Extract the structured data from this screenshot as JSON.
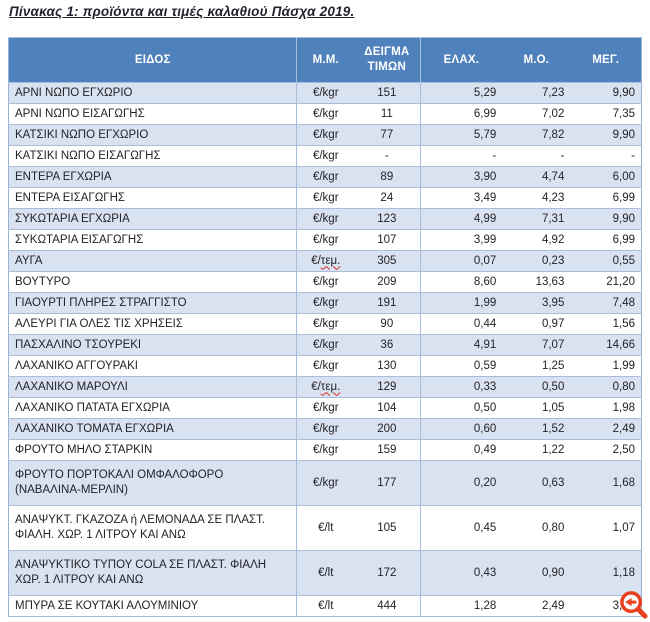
{
  "title": "Πίνακας 1: προϊόντα και τιμές καλαθιού  Πάσχα 2019.",
  "colors": {
    "header_bg": "#4f81bd",
    "band_bg": "#d9e2f0",
    "border": "#a9bdd8",
    "title_color": "#23232e",
    "zoom_icon_color": "#e8401f",
    "spellcheck_color": "#d42a1e"
  },
  "table": {
    "headers": [
      "ΕΙΔΟΣ",
      "Μ.Μ.",
      "ΔΕΙΓΜΑ ΤΙΜΩΝ",
      "ΕΛΑΧ.",
      "Μ.Ο.",
      "ΜΕΓ."
    ],
    "rows": [
      {
        "item": "ΑΡΝΙ ΝΩΠΟ ΕΓΧΩΡΙΟ",
        "unit": "€/kgr",
        "spellcheck": false,
        "sample": "151",
        "min": "5,29",
        "avg": "7,23",
        "max": "9,90"
      },
      {
        "item": "ΑΡΝΙ ΝΩΠΟ ΕΙΣΑΓΩΓΗΣ",
        "unit": "€/kgr",
        "spellcheck": false,
        "sample": "11",
        "min": "6,99",
        "avg": "7,02",
        "max": "7,35"
      },
      {
        "item": "ΚΑΤΣΙΚΙ ΝΩΠΟ ΕΓΧΩΡΙΟ",
        "unit": "€/kgr",
        "spellcheck": false,
        "sample": "77",
        "min": "5,79",
        "avg": "7,82",
        "max": "9,90"
      },
      {
        "item": "ΚΑΤΣΙΚΙ ΝΩΠΟ ΕΙΣΑΓΩΓΗΣ",
        "unit": "€/kgr",
        "spellcheck": false,
        "sample": "-",
        "min": "-",
        "avg": "-",
        "max": "-"
      },
      {
        "item": "ΕΝΤΕΡΑ ΕΓΧΩΡΙΑ",
        "unit": "€/kgr",
        "spellcheck": false,
        "sample": "89",
        "min": "3,90",
        "avg": "4,74",
        "max": "6,00"
      },
      {
        "item": "ΕΝΤΕΡΑ ΕΙΣΑΓΩΓΗΣ",
        "unit": "€/kgr",
        "spellcheck": false,
        "sample": "24",
        "min": "3,49",
        "avg": "4,23",
        "max": "6,99"
      },
      {
        "item": "ΣΥΚΩΤΑΡΙΑ ΕΓΧΩΡΙΑ",
        "unit": "€/kgr",
        "spellcheck": false,
        "sample": "123",
        "min": "4,99",
        "avg": "7,31",
        "max": "9,90"
      },
      {
        "item": "ΣΥΚΩΤΑΡΙΑ ΕΙΣΑΓΩΓΗΣ",
        "unit": "€/kgr",
        "spellcheck": false,
        "sample": "107",
        "min": "3,99",
        "avg": "4,92",
        "max": "6,99"
      },
      {
        "item": "ΑΥΓΑ",
        "unit": "€/τεμ.",
        "spellcheck": true,
        "sample": "305",
        "min": "0,07",
        "avg": "0,23",
        "max": "0,55"
      },
      {
        "item": "ΒΟΥΤΥΡΟ",
        "unit": "€/kgr",
        "spellcheck": false,
        "sample": "209",
        "min": "8,60",
        "avg": "13,63",
        "max": "21,20"
      },
      {
        "item": "ΓΙΑΟΥΡΤΙ ΠΛΗΡΕΣ ΣΤΡΑΓΓΙΣΤΟ",
        "unit": "€/kgr",
        "spellcheck": false,
        "sample": "191",
        "min": "1,99",
        "avg": "3,95",
        "max": "7,48"
      },
      {
        "item": "ΑΛΕΥΡΙ ΓΙΑ ΟΛΕΣ ΤΙΣ ΧΡΗΣΕΙΣ",
        "unit": "€/kgr",
        "spellcheck": false,
        "sample": "90",
        "min": "0,44",
        "avg": "0,97",
        "max": "1,56"
      },
      {
        "item": "ΠΑΣΧΑΛΙΝΟ ΤΣΟΥΡΕΚΙ",
        "unit": "€/kgr",
        "spellcheck": false,
        "sample": "36",
        "min": "4,91",
        "avg": "7,07",
        "max": "14,66"
      },
      {
        "item": "ΛΑΧΑΝΙΚΟ ΑΓΓΟΥΡΑΚΙ",
        "unit": "€/kgr",
        "spellcheck": false,
        "sample": "130",
        "min": "0,59",
        "avg": "1,25",
        "max": "1,99"
      },
      {
        "item": "ΛΑΧΑΝΙΚΟ ΜΑΡΟΥΛΙ",
        "unit": "€/τεμ.",
        "spellcheck": true,
        "sample": "129",
        "min": "0,33",
        "avg": "0,50",
        "max": "0,80"
      },
      {
        "item": "ΛΑΧΑΝΙΚΟ ΠΑΤΑΤΑ ΕΓΧΩΡΙΑ",
        "unit": "€/kgr",
        "spellcheck": false,
        "sample": "104",
        "min": "0,50",
        "avg": "1,05",
        "max": "1,98"
      },
      {
        "item": "ΛΑΧΑΝΙΚΟ ΤΟΜΑΤΑ ΕΓΧΩΡΙΑ",
        "unit": "€/kgr",
        "spellcheck": false,
        "sample": "200",
        "min": "0,60",
        "avg": "1,52",
        "max": "2,49"
      },
      {
        "item": "ΦΡΟΥΤΟ ΜΗΛΟ  ΣΤΑΡΚΙΝ",
        "unit": "€/kgr",
        "spellcheck": false,
        "sample": "159",
        "min": "0,49",
        "avg": "1,22",
        "max": "2,50"
      },
      {
        "item": "ΦΡΟΥΤΟ ΠΟΡΤΟΚΑΛΙ ΟΜΦΑΛΟΦΟΡΟ (ΝΑΒΑΛΙΝΑ-ΜΕΡΛΙΝ)",
        "unit": "€/kgr",
        "spellcheck": false,
        "sample": "177",
        "min": "0,20",
        "avg": "0,63",
        "max": "1,68"
      },
      {
        "item": "ΑΝΑΨΥΚΤ. ΓΚΑΖΟΖΑ ή ΛΕΜΟΝΑΔΑ ΣΕ ΠΛΑΣΤ. ΦΙΑΛΗ. ΧΩΡ. 1 ΛΙΤΡΟΥ ΚΑΙ ΑΝΩ",
        "unit": "€/lt",
        "spellcheck": false,
        "sample": "105",
        "min": "0,45",
        "avg": "0,80",
        "max": "1,07"
      },
      {
        "item": "ΑΝΑΨΥΚΤΙΚΟ ΤΥΠΟΥ COLA ΣΕ ΠΛΑΣΤ. ΦΙΑΛΗ ΧΩΡ. 1 ΛΙΤΡΟΥ ΚΑΙ ΑΝΩ",
        "unit": "€/lt",
        "spellcheck": false,
        "sample": "172",
        "min": "0,43",
        "avg": "0,90",
        "max": "1,18"
      },
      {
        "item": "ΜΠΥΡΑ ΣΕ ΚΟΥΤΑΚΙ ΑΛΟΥΜΙΝΙΟΥ",
        "unit": "€/lt",
        "spellcheck": false,
        "sample": "444",
        "min": "1,28",
        "avg": "2,49",
        "max": "3,70"
      }
    ]
  },
  "overlay": {
    "zoom_icon": "magnifier-enlarge"
  }
}
